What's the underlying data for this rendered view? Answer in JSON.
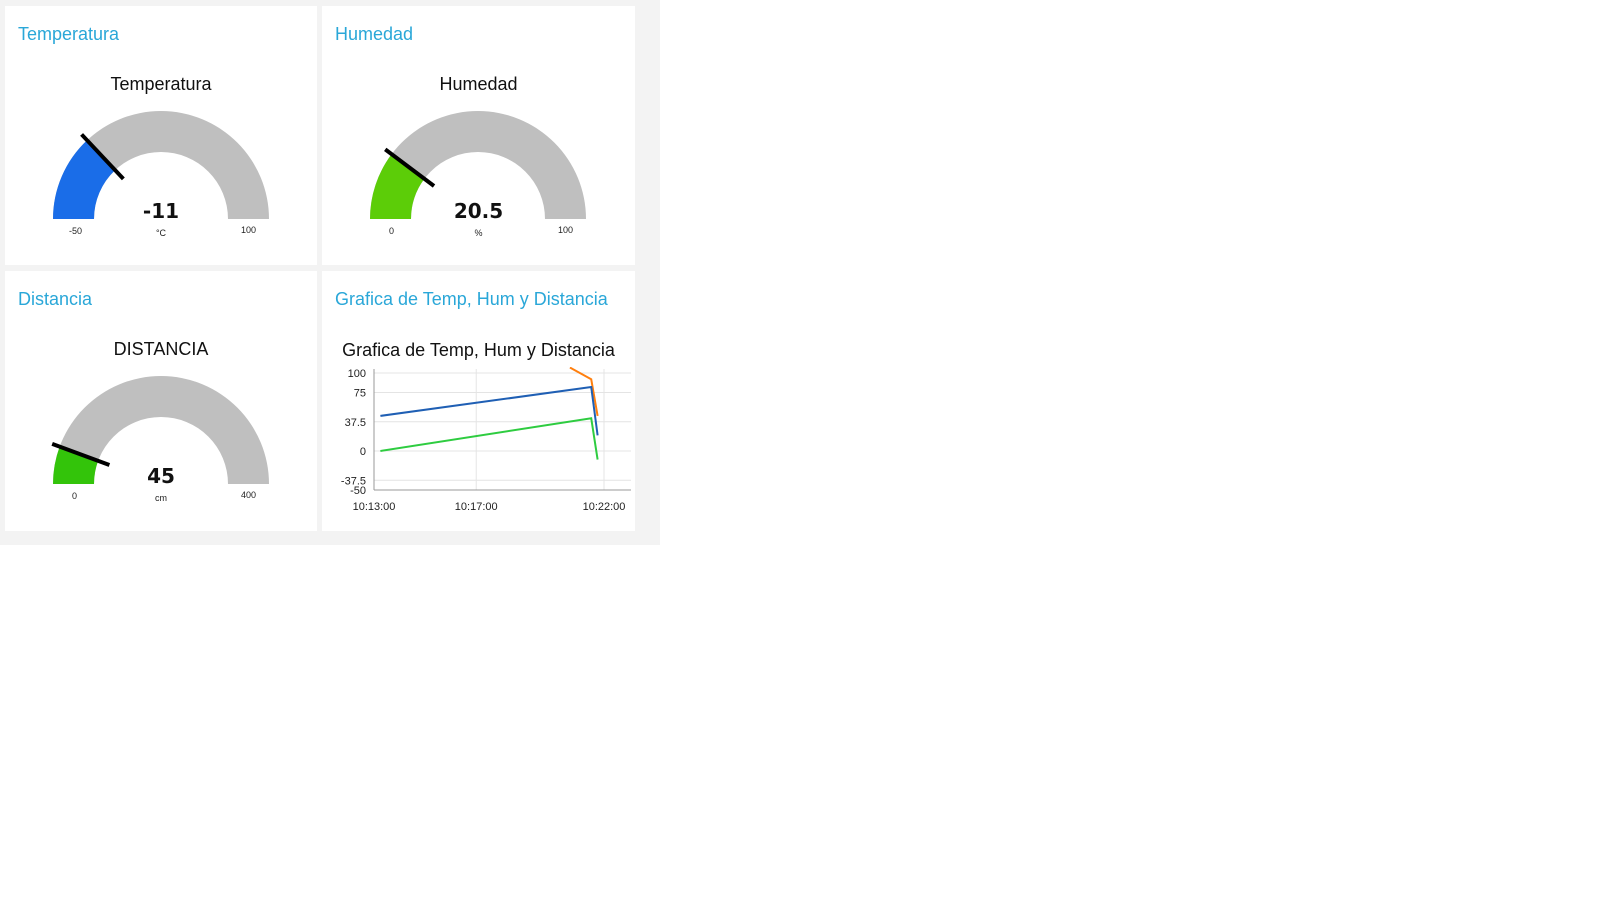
{
  "cards": {
    "temperature": {
      "header": "Temperatura",
      "gauge_title": "Temperatura",
      "value": -11,
      "value_label": "-11",
      "units": "°C",
      "min": -50,
      "max": 100,
      "min_label": "-50",
      "max_label": "100",
      "color": "#1a6de8"
    },
    "humidity": {
      "header": "Humedad",
      "gauge_title": "Humedad",
      "value": 20.5,
      "value_label": "20.5",
      "units": "%",
      "min": 0,
      "max": 100,
      "min_label": "0",
      "max_label": "100",
      "color": "#5ccd08"
    },
    "distance": {
      "header": "Distancia",
      "gauge_title": "DISTANCIA",
      "value": 45,
      "value_label": "45",
      "units": "cm",
      "min": 0,
      "max": 400,
      "min_label": "0",
      "max_label": "400",
      "color": "#33c40a"
    },
    "chart": {
      "header": "Grafica de Temp, Hum y Distancia"
    }
  },
  "colors": {
    "header_text": "#2aa7d8",
    "gauge_track": "#bfbfbf",
    "needle": "#000000"
  },
  "chart_data": {
    "type": "line",
    "title": "Grafica de Temp, Hum y Distancia",
    "xlabel": "",
    "ylabel": "",
    "ylim": [
      -50,
      100
    ],
    "yticks": [
      "100",
      "75",
      "37.5",
      "0",
      "-37.5",
      "-50"
    ],
    "xticks": [
      "10:13:00",
      "10:17:00",
      "10:22:00"
    ],
    "grid": true,
    "series": [
      {
        "color": "#ff7f0e",
        "points": [
          [
            "10:20:40",
            107
          ],
          [
            "10:21:30",
            92
          ],
          [
            "10:21:45",
            45
          ]
        ]
      },
      {
        "color": "#1f5fb4",
        "points": [
          [
            "10:13:15",
            45
          ],
          [
            "10:21:30",
            82
          ],
          [
            "10:21:45",
            20
          ]
        ]
      },
      {
        "color": "#2ecc40",
        "points": [
          [
            "10:13:15",
            0
          ],
          [
            "10:21:30",
            42
          ],
          [
            "10:21:45",
            -11
          ]
        ]
      }
    ]
  }
}
